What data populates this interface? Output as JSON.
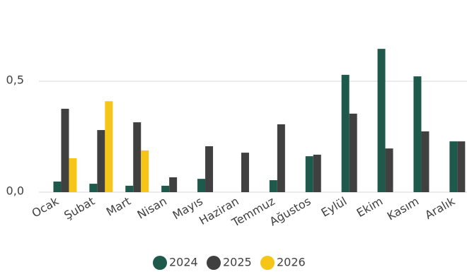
{
  "chart_data": {
    "type": "bar",
    "categories": [
      "Ocak",
      "Şubat",
      "Mart",
      "Nisan",
      "Mayıs",
      "Haziran",
      "Temmuz",
      "Ağustos",
      "Eylül",
      "Ekim",
      "Kasım",
      "Aralık"
    ],
    "series": [
      {
        "name": "2024",
        "color": "#1e5a4b",
        "values": [
          0.048,
          0.038,
          0.029,
          0.029,
          0.06,
          null,
          0.054,
          0.162,
          0.529,
          0.646,
          0.522,
          0.229
        ]
      },
      {
        "name": "2025",
        "color": "#404040",
        "values": [
          0.376,
          0.28,
          0.315,
          0.067,
          0.207,
          0.178,
          0.306,
          0.169,
          0.354,
          0.197,
          0.274,
          0.229
        ]
      },
      {
        "name": "2026",
        "color": "#f5c518",
        "values": [
          0.153,
          0.41,
          0.188,
          null,
          null,
          null,
          null,
          null,
          null,
          null,
          null,
          null
        ]
      }
    ],
    "ylim": [
      0,
      0.8
    ],
    "yticks": [
      {
        "value": 0,
        "label": "0,0"
      },
      {
        "value": 0.5,
        "label": "0,5"
      }
    ],
    "grid": true,
    "legend": "bottom"
  }
}
